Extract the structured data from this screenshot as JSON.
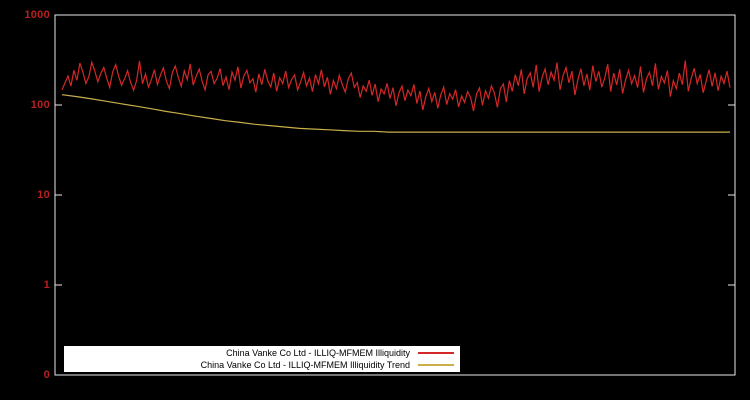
{
  "chart_data": {
    "type": "line",
    "title": "",
    "xlabel": "",
    "ylabel": "",
    "yscale": "log",
    "grid": false,
    "background_color": "#000000",
    "axis_color": "#e8e8e8",
    "tick_label_color": "#b82020",
    "yticks": [
      "1000",
      "100",
      "10",
      "1",
      "0"
    ],
    "ytick_values": [
      1000,
      100,
      10,
      1,
      0.1
    ],
    "ylim": [
      0.1,
      1000
    ],
    "legend": {
      "position": "bottom-center",
      "background": "#ffffff",
      "text_color": "#000000"
    },
    "series": [
      {
        "name": "China Vanke Co Ltd - ILLIQ-MFMEM Illiquidity",
        "color": "#d42828",
        "values": [
          148,
          176,
          210,
          162,
          243,
          188,
          292,
          231,
          174,
          206,
          298,
          238,
          181,
          224,
          262,
          198,
          157,
          233,
          281,
          208,
          166,
          196,
          241,
          178,
          146,
          187,
          308,
          172,
          221,
          158,
          193,
          247,
          169,
          214,
          259,
          184,
          152,
          228,
          271,
          203,
          161,
          239,
          192,
          286,
          167,
          209,
          251,
          183,
          147,
          217,
          236,
          173,
          198,
          254,
          164,
          205,
          148,
          232,
          189,
          266,
          154,
          211,
          243,
          177,
          196,
          139,
          222,
          168,
          249,
          185,
          158,
          227,
          142,
          201,
          173,
          238,
          156,
          192,
          216,
          147,
          181,
          229,
          163,
          199,
          141,
          218,
          172,
          246,
          159,
          203,
          131,
          187,
          152,
          214,
          168,
          139,
          196,
          226,
          157,
          178,
          121,
          163,
          142,
          189,
          128,
          171,
          109,
          151,
          133,
          174,
          118,
          156,
          98,
          137,
          162,
          112,
          146,
          127,
          169,
          104,
          143,
          88,
          124,
          153,
          109,
          138,
          92,
          129,
          158,
          101,
          134,
          116,
          148,
          95,
          126,
          107,
          141,
          121,
          86,
          132,
          155,
          99,
          144,
          119,
          163,
          136,
          94,
          152,
          171,
          108,
          186,
          142,
          217,
          164,
          248,
          133,
          196,
          228,
          157,
          279,
          141,
          203,
          252,
          168,
          232,
          189,
          296,
          148,
          211,
          261,
          176,
          238,
          129,
          192,
          253,
          164,
          221,
          146,
          274,
          183,
          237,
          158,
          201,
          284,
          141,
          226,
          167,
          249,
          134,
          191,
          243,
          172,
          212,
          156,
          268,
          138,
          197,
          231,
          163,
          289,
          149,
          208,
          176,
          241,
          124,
          186,
          152,
          226,
          169,
          312,
          142,
          198,
          256,
          173,
          218,
          137,
          184,
          247,
          161,
          228,
          144,
          209,
          174,
          238,
          156
        ]
      },
      {
        "name": "China Vanke Co Ltd - ILLIQ-MFMEM Illiquidity Trend",
        "color": "#c9ae4a",
        "values": [
          130,
          124,
          117,
          110,
          103,
          97,
          91,
          85,
          80,
          75,
          71,
          67,
          64,
          61,
          59,
          57,
          55,
          54,
          53,
          52,
          51,
          51,
          50,
          50,
          50,
          50,
          50,
          50,
          50,
          50,
          50,
          50,
          50,
          50,
          50,
          50,
          50,
          50,
          50,
          50,
          50,
          50,
          50,
          50,
          50,
          50
        ]
      }
    ]
  }
}
